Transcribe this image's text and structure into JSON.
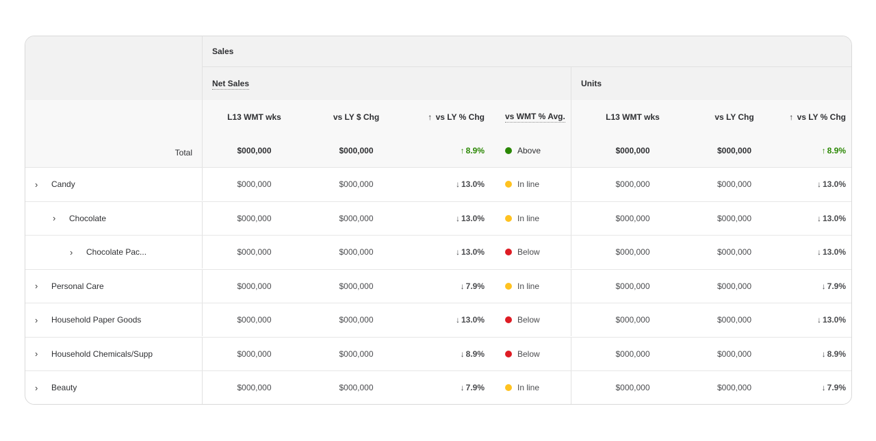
{
  "header": {
    "sales": "Sales",
    "net_sales": "Net Sales",
    "units": "Units",
    "columns": {
      "net_l13": "L13 WMT wks",
      "net_vs_ly_dollar": "vs LY $ Chg",
      "net_vs_ly_pct": "vs LY % Chg",
      "net_vs_wmt_avg": "vs WMT % Avg.",
      "units_l13": "L13 WMT wks",
      "units_vs_ly": "vs LY Chg",
      "units_vs_ly_pct": "vs LY % Chg"
    },
    "sort_arrow": "↑"
  },
  "colors": {
    "green": "#2a8703",
    "red": "#de1c24",
    "yellow": "#ffc220",
    "status_green": "#2a8703",
    "status_red": "#de1c24"
  },
  "total": {
    "label": "Total",
    "net_l13": "$000,000",
    "net_vs_ly_dollar": "$000,000",
    "net_vs_ly_pct_arrow": "↑",
    "net_vs_ly_pct": "8.9%",
    "status": "Above",
    "units_l13": "$000,000",
    "units_vs_ly": "$000,000",
    "units_vs_ly_pct_arrow": "↑",
    "units_vs_ly_pct": "8.9%"
  },
  "rows": [
    {
      "label": "Candy",
      "net_l13": "$000,000",
      "net_vs_ly_dollar": "$000,000",
      "arrow": "↓",
      "net_vs_ly_pct": "13.0%",
      "status": "In line",
      "units_l13": "$000,000",
      "units_vs_ly": "$000,000",
      "units_vs_ly_pct": "13.0%"
    },
    {
      "label": "Chocolate",
      "net_l13": "$000,000",
      "net_vs_ly_dollar": "$000,000",
      "arrow": "↓",
      "net_vs_ly_pct": "13.0%",
      "status": "In line",
      "units_l13": "$000,000",
      "units_vs_ly": "$000,000",
      "units_vs_ly_pct": "13.0%"
    },
    {
      "label": "Chocolate Pac...",
      "net_l13": "$000,000",
      "net_vs_ly_dollar": "$000,000",
      "arrow": "↓",
      "net_vs_ly_pct": "13.0%",
      "status": "Below",
      "units_l13": "$000,000",
      "units_vs_ly": "$000,000",
      "units_vs_ly_pct": "13.0%"
    },
    {
      "label": "Personal Care",
      "net_l13": "$000,000",
      "net_vs_ly_dollar": "$000,000",
      "arrow": "↓",
      "net_vs_ly_pct": "7.9%",
      "status": "In line",
      "units_l13": "$000,000",
      "units_vs_ly": "$000,000",
      "units_vs_ly_pct": "7.9%"
    },
    {
      "label": "Household Paper Goods",
      "net_l13": "$000,000",
      "net_vs_ly_dollar": "$000,000",
      "arrow": "↓",
      "net_vs_ly_pct": "13.0%",
      "status": "Below",
      "units_l13": "$000,000",
      "units_vs_ly": "$000,000",
      "units_vs_ly_pct": "13.0%"
    },
    {
      "label": "Household Chemicals/Supp",
      "net_l13": "$000,000",
      "net_vs_ly_dollar": "$000,000",
      "arrow": "↓",
      "net_vs_ly_pct": "8.9%",
      "status": "Below",
      "units_l13": "$000,000",
      "units_vs_ly": "$000,000",
      "units_vs_ly_pct": "8.9%"
    },
    {
      "label": "Beauty",
      "net_l13": "$000,000",
      "net_vs_ly_dollar": "$000,000",
      "arrow": "↓",
      "net_vs_ly_pct": "7.9%",
      "status": "In line",
      "units_l13": "$000,000",
      "units_vs_ly": "$000,000",
      "units_vs_ly_pct": "7.9%"
    }
  ]
}
